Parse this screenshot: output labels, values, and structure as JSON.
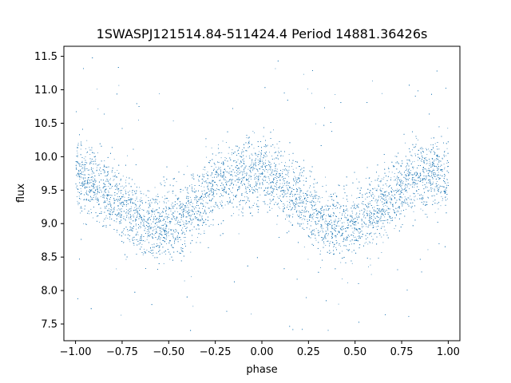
{
  "chart_data": {
    "type": "scatter",
    "title": "1SWASPJ121514.84-511424.4 Period 14881.36426s",
    "xlabel": "phase",
    "ylabel": "flux",
    "xlim": [
      -1.0625,
      1.0625
    ],
    "ylim": [
      7.25,
      11.65
    ],
    "x_ticks": [
      -1.0,
      -0.75,
      -0.5,
      -0.25,
      0.0,
      0.25,
      0.5,
      0.75,
      1.0
    ],
    "x_tick_labels": [
      "−1.00",
      "−0.75",
      "−0.50",
      "−0.25",
      "0.00",
      "0.25",
      "0.50",
      "0.75",
      "1.00"
    ],
    "y_ticks": [
      7.5,
      8.0,
      8.5,
      9.0,
      9.5,
      10.0,
      10.5,
      11.0,
      11.5
    ],
    "y_tick_labels": [
      "7.5",
      "8.0",
      "8.5",
      "9.0",
      "9.5",
      "10.0",
      "10.5",
      "11.0",
      "11.5"
    ],
    "grid": false,
    "legend": "none",
    "marker_color": "#1f77b4",
    "series": [
      {
        "x": [
          -1.0,
          -0.95,
          -0.9,
          -0.85,
          -0.8,
          -0.75,
          -0.7,
          -0.65,
          -0.6,
          -0.55,
          -0.5,
          -0.45,
          -0.4,
          -0.35,
          -0.3,
          -0.25,
          -0.2,
          -0.15,
          -0.1,
          -0.05,
          0.0,
          0.05,
          0.1,
          0.15,
          0.2,
          0.25,
          0.3,
          0.35,
          0.4,
          0.45,
          0.5,
          0.55,
          0.6,
          0.65,
          0.7,
          0.75,
          0.8,
          0.85,
          0.9,
          0.95,
          1.0
        ],
        "y": [
          9.7,
          9.66,
          9.6,
          9.5,
          9.4,
          9.28,
          9.16,
          9.06,
          9.0,
          8.97,
          9.0,
          9.06,
          9.16,
          9.28,
          9.42,
          9.55,
          9.65,
          9.72,
          9.75,
          9.74,
          9.7,
          9.66,
          9.6,
          9.5,
          9.4,
          9.28,
          9.16,
          9.06,
          9.0,
          8.97,
          9.0,
          9.06,
          9.16,
          9.28,
          9.42,
          9.55,
          9.65,
          9.72,
          9.75,
          9.74,
          9.7
        ]
      }
    ]
  }
}
